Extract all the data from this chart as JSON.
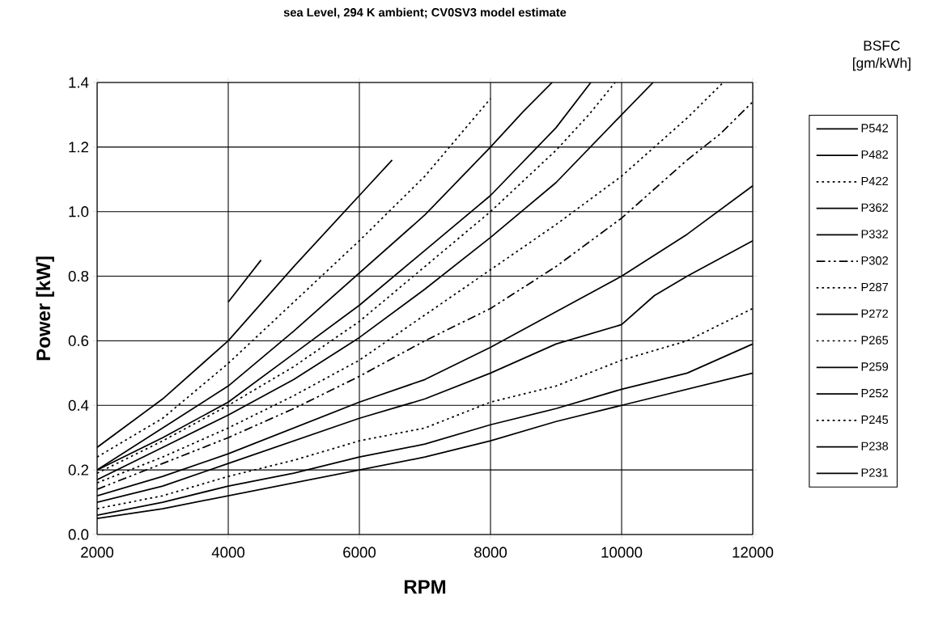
{
  "chart_data": {
    "type": "line",
    "title": "sea Level, 294 K ambient; CV0SV3 model estimate",
    "xlabel": "RPM",
    "ylabel": "Power [kW]",
    "legend_title": "BSFC [gm/kWh]",
    "legend": "right",
    "grid": true,
    "marker": "none",
    "xlim": [
      2000,
      12000
    ],
    "xticks": [
      2000,
      4000,
      6000,
      8000,
      10000,
      12000
    ],
    "ylim": [
      0,
      1.4
    ],
    "yticks": [
      {
        "value": 0,
        "label": "0.0"
      },
      0.2,
      0.4,
      0.6,
      0.8,
      {
        "value": 1,
        "label": "1.0"
      },
      1.2,
      1.4
    ],
    "series": [
      {
        "name": "P542",
        "color": "#000000",
        "line_style": "solid",
        "x": [
          2000,
          3000,
          4000,
          5000,
          6000,
          7000,
          8000,
          9000,
          10000,
          11000,
          12000
        ],
        "values": [
          0.05,
          0.08,
          0.12,
          0.16,
          0.2,
          0.24,
          0.29,
          0.35,
          0.4,
          0.45,
          0.5
        ]
      },
      {
        "name": "P482",
        "color": "#000000",
        "line_style": "solid",
        "x": [
          2000,
          3000,
          4000,
          5000,
          6000,
          7000,
          8000,
          9000,
          10000,
          11000,
          12000
        ],
        "values": [
          0.06,
          0.1,
          0.15,
          0.19,
          0.24,
          0.28,
          0.34,
          0.39,
          0.45,
          0.5,
          0.59
        ]
      },
      {
        "name": "P422",
        "color": "#000000",
        "line_style": "dotted",
        "x": [
          2000,
          3000,
          4000,
          5000,
          6000,
          7000,
          8000,
          9000,
          10000,
          11000,
          12000
        ],
        "values": [
          0.08,
          0.12,
          0.18,
          0.23,
          0.29,
          0.33,
          0.41,
          0.46,
          0.54,
          0.6,
          0.7
        ]
      },
      {
        "name": "P362",
        "color": "#000000",
        "line_style": "solid",
        "x": [
          2000,
          3000,
          4000,
          5000,
          6000,
          7000,
          8000,
          9000,
          10000,
          10500,
          11000,
          12000
        ],
        "values": [
          0.1,
          0.15,
          0.22,
          0.29,
          0.36,
          0.42,
          0.5,
          0.59,
          0.65,
          0.74,
          0.8,
          0.91
        ]
      },
      {
        "name": "P332",
        "color": "#000000",
        "line_style": "solid",
        "x": [
          2000,
          3000,
          4000,
          5000,
          6000,
          7000,
          8000,
          9000,
          10000,
          11000,
          12000
        ],
        "values": [
          0.12,
          0.18,
          0.25,
          0.33,
          0.41,
          0.48,
          0.58,
          0.69,
          0.8,
          0.93,
          1.08
        ]
      },
      {
        "name": "P302",
        "color": "#000000",
        "line_style": "dashed",
        "x": [
          2000,
          3000,
          4000,
          5000,
          6000,
          7000,
          8000,
          9000,
          10000,
          11000,
          11500,
          12000
        ],
        "values": [
          0.14,
          0.22,
          0.3,
          0.39,
          0.49,
          0.6,
          0.7,
          0.83,
          0.98,
          1.16,
          1.24,
          1.34
        ]
      },
      {
        "name": "P287",
        "color": "#000000",
        "line_style": "dotted",
        "x": [
          2000,
          3000,
          4000,
          5000,
          6000,
          7000,
          8000,
          9000,
          10000,
          11000,
          11550
        ],
        "values": [
          0.16,
          0.24,
          0.33,
          0.43,
          0.54,
          0.68,
          0.82,
          0.96,
          1.11,
          1.29,
          1.4
        ]
      },
      {
        "name": "P272",
        "color": "#000000",
        "line_style": "solid",
        "x": [
          2000,
          3000,
          4000,
          5000,
          6000,
          7000,
          8000,
          9000,
          10000,
          10480
        ],
        "values": [
          0.17,
          0.27,
          0.37,
          0.48,
          0.61,
          0.76,
          0.92,
          1.09,
          1.3,
          1.4
        ]
      },
      {
        "name": "P265",
        "color": "#000000",
        "line_style": "dotted",
        "x": [
          2000,
          3000,
          4000,
          5000,
          6000,
          7000,
          8000,
          9000,
          9500,
          9900
        ],
        "values": [
          0.19,
          0.29,
          0.4,
          0.52,
          0.66,
          0.83,
          1.0,
          1.19,
          1.3,
          1.4
        ]
      },
      {
        "name": "P259",
        "color": "#000000",
        "line_style": "solid",
        "x": [
          2000,
          3000,
          4000,
          5000,
          6000,
          7000,
          8000,
          9000,
          9530
        ],
        "values": [
          0.2,
          0.3,
          0.41,
          0.56,
          0.71,
          0.88,
          1.05,
          1.26,
          1.4
        ]
      },
      {
        "name": "P252",
        "color": "#000000",
        "line_style": "solid",
        "x": [
          2000,
          3000,
          4000,
          5000,
          6000,
          7000,
          8000,
          8500,
          8940
        ],
        "values": [
          0.2,
          0.33,
          0.46,
          0.63,
          0.81,
          0.99,
          1.2,
          1.31,
          1.4
        ]
      },
      {
        "name": "P245",
        "color": "#000000",
        "line_style": "dotted",
        "x": [
          2000,
          3000,
          4000,
          5000,
          6000,
          7000,
          8000
        ],
        "values": [
          0.24,
          0.36,
          0.53,
          0.72,
          0.91,
          1.11,
          1.35
        ]
      },
      {
        "name": "P238",
        "color": "#000000",
        "line_style": "solid",
        "x": [
          2000,
          3000,
          4000,
          5000,
          6000,
          6500
        ],
        "values": [
          0.27,
          0.42,
          0.6,
          0.83,
          1.05,
          1.16
        ]
      },
      {
        "name": "P231",
        "color": "#000000",
        "line_style": "solid",
        "x": [
          4000,
          4500
        ],
        "values": [
          0.72,
          0.85
        ]
      }
    ]
  }
}
